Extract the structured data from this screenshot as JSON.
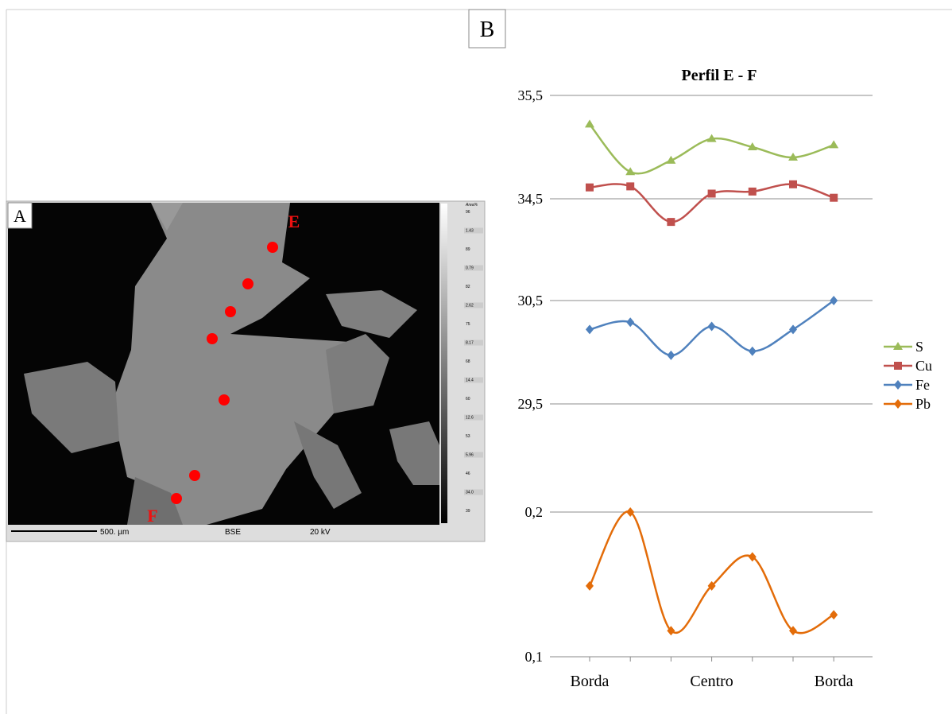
{
  "panel_a": {
    "label": "A",
    "point_labels": [
      "E",
      "F"
    ],
    "scale_text": "500. µm",
    "mode_text": "BSE",
    "voltage_text": "20 kV",
    "colorbar_title": "Area%",
    "colorbar_labels": [
      "96",
      "1.43",
      "89",
      "0.79",
      "82",
      "2.62",
      "75",
      "8.17",
      "68",
      "14.4",
      "60",
      "12.6",
      "53",
      "5.96",
      "46",
      "34.0",
      "39"
    ]
  },
  "panel_b_label": "B",
  "chart_data": {
    "type": "line",
    "title": "Perfil E - F",
    "categories": [
      "Borda",
      null,
      null,
      "Centro",
      null,
      null,
      "Borda"
    ],
    "series": [
      {
        "name": "S",
        "color": "#9bbb59",
        "marker": "triangle",
        "values": [
          35.22,
          34.76,
          34.87,
          35.08,
          35.0,
          34.9,
          35.02
        ]
      },
      {
        "name": "Cu",
        "color": "#c0504d",
        "marker": "square",
        "values": [
          34.61,
          34.62,
          33.59,
          34.55,
          34.57,
          34.64,
          34.51
        ]
      },
      {
        "name": "Fe",
        "color": "#4f81bd",
        "marker": "diamond",
        "values": [
          30.22,
          30.29,
          29.97,
          30.25,
          30.01,
          30.22,
          30.5
        ]
      },
      {
        "name": "Pb",
        "color": "#e36c09",
        "marker": "diamond",
        "values": [
          0.149,
          0.2,
          0.118,
          0.149,
          0.169,
          0.118,
          0.129
        ]
      }
    ],
    "yticks": [
      {
        "value": 35.5,
        "label": "35,5"
      },
      {
        "value": 34.5,
        "label": "34,5"
      },
      {
        "value": 30.5,
        "label": "30,5"
      },
      {
        "value": 29.5,
        "label": "29,5"
      },
      {
        "value": 0.2,
        "label": "0,2"
      },
      {
        "value": 0.1,
        "label": "0,1"
      }
    ],
    "grid": true,
    "smooth": true
  }
}
